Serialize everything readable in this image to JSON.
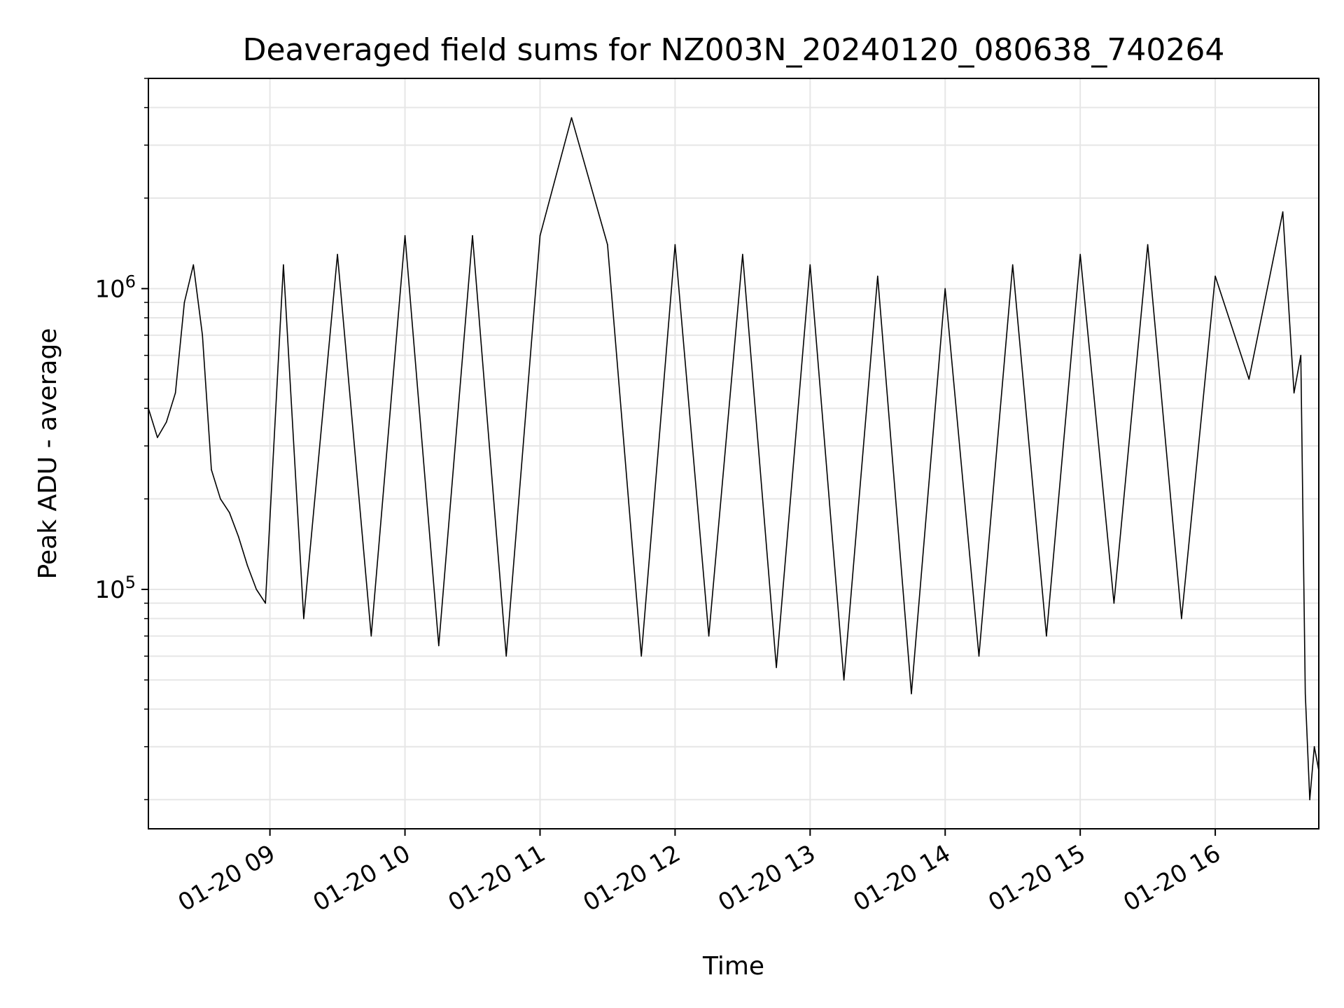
{
  "chart_data": {
    "type": "line",
    "title": "Deaveraged field sums for NZ003N_20240120_080638_740264",
    "xlabel": "Time",
    "ylabel": "Peak ADU - average",
    "y_scale": "log",
    "grid": true,
    "legend": "none",
    "colors": {
      "line": "#000000",
      "grid": "#e6e6e6",
      "axes": "#000000"
    },
    "xlim": [
      "2024-01-20 08:06",
      "2024-01-20 16:46"
    ],
    "ylim": [
      16000,
      5000000
    ],
    "x_ticks": [
      {
        "time": "2024-01-20 09:00",
        "label": "01-20 09"
      },
      {
        "time": "2024-01-20 10:00",
        "label": "01-20 10"
      },
      {
        "time": "2024-01-20 11:00",
        "label": "01-20 11"
      },
      {
        "time": "2024-01-20 12:00",
        "label": "01-20 12"
      },
      {
        "time": "2024-01-20 13:00",
        "label": "01-20 13"
      },
      {
        "time": "2024-01-20 14:00",
        "label": "01-20 14"
      },
      {
        "time": "2024-01-20 15:00",
        "label": "01-20 15"
      },
      {
        "time": "2024-01-20 16:00",
        "label": "01-20 16"
      }
    ],
    "y_ticks": [
      {
        "value": 100000,
        "base": "10",
        "exp": "5"
      },
      {
        "value": 1000000,
        "base": "10",
        "exp": "6"
      }
    ],
    "series": [
      {
        "x": [
          "2024-01-20 08:06",
          "2024-01-20 08:10",
          "2024-01-20 08:14",
          "2024-01-20 08:18",
          "2024-01-20 08:22",
          "2024-01-20 08:26",
          "2024-01-20 08:30",
          "2024-01-20 08:34",
          "2024-01-20 08:38",
          "2024-01-20 08:42",
          "2024-01-20 08:46",
          "2024-01-20 08:50",
          "2024-01-20 08:54",
          "2024-01-20 08:58",
          "2024-01-20 09:06",
          "2024-01-20 09:15",
          "2024-01-20 09:30",
          "2024-01-20 09:45",
          "2024-01-20 10:00",
          "2024-01-20 10:15",
          "2024-01-20 10:30",
          "2024-01-20 10:45",
          "2024-01-20 11:00",
          "2024-01-20 11:14",
          "2024-01-20 11:30",
          "2024-01-20 11:45",
          "2024-01-20 12:00",
          "2024-01-20 12:15",
          "2024-01-20 12:30",
          "2024-01-20 12:45",
          "2024-01-20 13:00",
          "2024-01-20 13:15",
          "2024-01-20 13:30",
          "2024-01-20 13:45",
          "2024-01-20 14:00",
          "2024-01-20 14:15",
          "2024-01-20 14:30",
          "2024-01-20 14:45",
          "2024-01-20 15:00",
          "2024-01-20 15:15",
          "2024-01-20 15:30",
          "2024-01-20 15:45",
          "2024-01-20 16:00",
          "2024-01-20 16:15",
          "2024-01-20 16:30",
          "2024-01-20 16:35",
          "2024-01-20 16:38",
          "2024-01-20 16:40",
          "2024-01-20 16:42",
          "2024-01-20 16:44",
          "2024-01-20 16:46"
        ],
        "y": [
          400000,
          320000,
          360000,
          450000,
          900000,
          1200000,
          700000,
          250000,
          200000,
          180000,
          150000,
          120000,
          100000,
          90000,
          1200000,
          80000,
          1300000,
          70000,
          1500000,
          65000,
          1500000,
          60000,
          1500000,
          3700000,
          1400000,
          60000,
          1400000,
          70000,
          1300000,
          55000,
          1200000,
          50000,
          1100000,
          45000,
          1000000,
          60000,
          1200000,
          70000,
          1300000,
          90000,
          1400000,
          80000,
          1100000,
          500000,
          1800000,
          450000,
          600000,
          45000,
          20000,
          30000,
          25000
        ]
      }
    ]
  }
}
